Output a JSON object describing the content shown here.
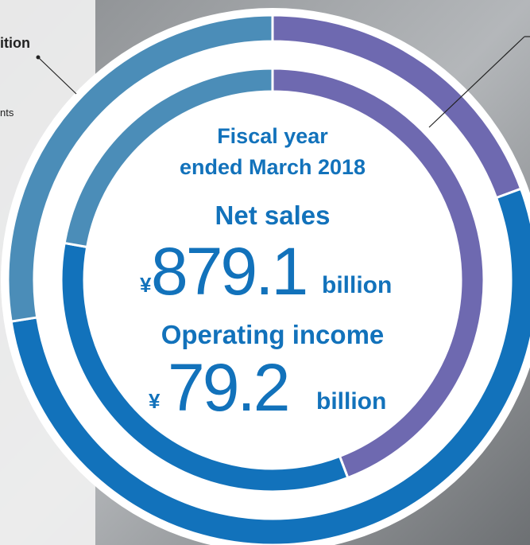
{
  "chart_data": {
    "type": "donut",
    "rings": [
      {
        "values": [
          19.4,
          53.1,
          27.5
        ],
        "colors": [
          "#6e69b0",
          "#1272bb",
          "#4b8db8"
        ]
      },
      {
        "values": [
          44.2,
          33.6,
          22.2
        ],
        "colors": [
          "#6e69b0",
          "#1272bb",
          "#4b8db8"
        ]
      }
    ],
    "left_labels": [
      "ition",
      "nts"
    ],
    "period": [
      "Fiscal year",
      "ended March 2018"
    ],
    "net_sales": {
      "label": "Net sales",
      "currency": "¥",
      "value": 879.1,
      "unit": "billion"
    },
    "operating_income": {
      "label": "Operating income",
      "currency": "¥",
      "value": 79.2,
      "unit": "billion"
    }
  }
}
